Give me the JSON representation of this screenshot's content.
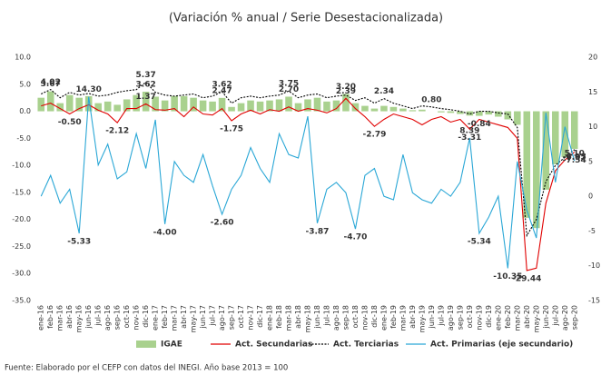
{
  "chart_data": {
    "type": "combo",
    "title": "(Variación % anual / Serie Desestacionalizada)",
    "source": "Fuente: Elaborado por el CEFP con datos del INEGI. Año base 2013 = 100",
    "categories": [
      "ene-16",
      "feb-16",
      "mar-16",
      "abr-16",
      "may-16",
      "jun-16",
      "jul-16",
      "ago-16",
      "sep-16",
      "oct-16",
      "nov-16",
      "dic-16",
      "ene-17",
      "feb-17",
      "mar-17",
      "abr-17",
      "may-17",
      "jun-17",
      "jul-17",
      "ago-17",
      "sep-17",
      "oct-17",
      "nov-17",
      "dic-17",
      "ene-18",
      "feb-18",
      "mar-18",
      "abr-18",
      "may-18",
      "jun-18",
      "jul-18",
      "ago-18",
      "sep-18",
      "oct-18",
      "nov-18",
      "dic-18",
      "ene-19",
      "feb-19",
      "mar-19",
      "abr-19",
      "may-19",
      "jun-19",
      "jul-19",
      "ago-19",
      "sep-19",
      "oct-19",
      "nov-19",
      "dic-19",
      "ene-20",
      "feb-20",
      "mar-20",
      "abr-20",
      "may-20",
      "jun-20",
      "jul-20",
      "ago-20",
      "sep-20"
    ],
    "ylim": [
      -35,
      10
    ],
    "yticks": [
      {
        "value": 10,
        "label": "10.0"
      },
      {
        "value": 5,
        "label": "5.0"
      },
      {
        "value": 0,
        "label": "0.0"
      },
      {
        "value": -5,
        "label": "-5.0"
      },
      {
        "value": -10,
        "label": "-10.0"
      },
      {
        "value": -15,
        "label": "-15.0"
      },
      {
        "value": -20,
        "label": "-20.0"
      },
      {
        "value": -25,
        "label": "-25.0"
      },
      {
        "value": -30,
        "label": "-30.0"
      },
      {
        "value": -35,
        "label": "-35.0"
      }
    ],
    "y2lim": [
      -15,
      20
    ],
    "y2ticks": [
      20,
      15,
      10,
      5,
      0,
      -5,
      -10,
      -15
    ],
    "series": [
      {
        "name": "IGAE",
        "type": "bar",
        "color": "#a9d18e",
        "label_color": "#2e9e48",
        "values": [
          2.5,
          3.67,
          1.5,
          3.0,
          2.5,
          2.8,
          1.5,
          1.8,
          1.2,
          2.2,
          3.0,
          3.62,
          2.7,
          2.0,
          2.8,
          2.8,
          2.5,
          2.0,
          1.8,
          2.47,
          0.8,
          1.5,
          2.0,
          1.8,
          2.0,
          2.2,
          2.7,
          1.5,
          2.2,
          2.5,
          1.8,
          2.0,
          3.2,
          1.5,
          1.0,
          0.5,
          1.0,
          0.8,
          0.5,
          0.2,
          0.3,
          0.0,
          -0.2,
          -0.3,
          -0.5,
          -0.8,
          -0.84,
          -0.6,
          -1.0,
          -1.5,
          -2.5,
          -19.7,
          -21.6,
          -14.5,
          -9.8,
          -8.5,
          -6.95
        ],
        "value_labels": [
          null,
          "3.67",
          null,
          null,
          null,
          null,
          null,
          null,
          null,
          null,
          null,
          "3.62",
          null,
          null,
          null,
          null,
          null,
          null,
          null,
          "2.47",
          null,
          null,
          null,
          null,
          null,
          null,
          "2.70",
          null,
          null,
          null,
          null,
          null,
          "3.20",
          null,
          null,
          null,
          null,
          null,
          null,
          null,
          null,
          null,
          null,
          null,
          null,
          null,
          "-0.84",
          null,
          null,
          null,
          null,
          null,
          null,
          null,
          null,
          null,
          "-6.95"
        ]
      },
      {
        "name": "Act. Secundarias",
        "type": "line",
        "color": "#e00000",
        "label_color": "#e00000",
        "values": [
          1.0,
          1.5,
          0.5,
          -0.5,
          0.5,
          1.2,
          0.2,
          -0.5,
          -2.12,
          0.5,
          0.5,
          1.37,
          0.3,
          0.2,
          0.5,
          -1.0,
          0.8,
          -0.5,
          -0.7,
          0.5,
          -1.75,
          -0.5,
          0.2,
          -0.5,
          0.3,
          0.0,
          0.8,
          0.0,
          0.5,
          0.2,
          -0.3,
          0.5,
          2.39,
          0.5,
          -1.0,
          -2.79,
          -1.5,
          -0.5,
          -1.0,
          -1.5,
          -2.5,
          -1.5,
          -1.0,
          -2.0,
          -1.5,
          -3.31,
          -1.5,
          -2.0,
          -2.5,
          -3.0,
          -5.0,
          -29.44,
          -29.0,
          -17.0,
          -11.0,
          -9.0,
          -7.54
        ],
        "value_labels": [
          null,
          null,
          null,
          "-0.50",
          null,
          null,
          null,
          null,
          "-2.12",
          null,
          null,
          "1.37",
          null,
          null,
          null,
          null,
          null,
          null,
          null,
          null,
          "-1.75",
          null,
          null,
          null,
          null,
          null,
          null,
          null,
          null,
          null,
          null,
          null,
          "2.39",
          null,
          null,
          "-2.79",
          null,
          null,
          null,
          null,
          null,
          null,
          null,
          null,
          null,
          "-3.31",
          null,
          null,
          null,
          null,
          null,
          "-29.44",
          null,
          null,
          null,
          null,
          "-7.54"
        ]
      },
      {
        "name": "Act. Terciarias",
        "type": "line",
        "style": "dotted",
        "color": "#000000",
        "label_color": "#000000",
        "values": [
          3.2,
          4.02,
          2.5,
          3.5,
          3.0,
          3.3,
          2.8,
          3.0,
          3.5,
          3.8,
          4.0,
          5.37,
          3.5,
          3.0,
          2.8,
          3.0,
          3.2,
          2.5,
          2.8,
          3.62,
          1.5,
          2.5,
          2.8,
          2.5,
          2.8,
          3.0,
          3.75,
          2.5,
          3.0,
          3.2,
          2.5,
          2.8,
          3.0,
          2.0,
          2.5,
          1.5,
          2.34,
          1.5,
          1.0,
          0.5,
          1.0,
          0.8,
          0.5,
          0.3,
          0.0,
          -0.5,
          0.0,
          0.0,
          -0.3,
          -0.5,
          -3.0,
          -23.0,
          -20.0,
          -13.0,
          -10.0,
          -8.5,
          -7.07
        ],
        "value_labels": [
          null,
          "4.02",
          null,
          null,
          null,
          null,
          null,
          null,
          null,
          null,
          null,
          "5.37",
          null,
          null,
          null,
          null,
          null,
          null,
          null,
          "3.62",
          null,
          null,
          null,
          null,
          null,
          null,
          "3.75",
          null,
          null,
          null,
          null,
          null,
          null,
          null,
          null,
          null,
          "2.34",
          null,
          null,
          null,
          null,
          "0.80",
          null,
          null,
          null,
          null,
          null,
          null,
          null,
          null,
          null,
          null,
          null,
          null,
          null,
          null,
          "-7.07"
        ]
      },
      {
        "name": "Act. Primarias (eje secundario)",
        "type": "line",
        "axis": "y2",
        "color": "#2aa7d6",
        "label_color": "#2aa7d6",
        "values": [
          0,
          3,
          -1,
          1,
          -5.33,
          14.3,
          4.5,
          7.5,
          2.5,
          3.5,
          9,
          4,
          11,
          -4.0,
          5,
          3,
          2,
          6,
          1.5,
          -2.6,
          1,
          3,
          7,
          4,
          2,
          9,
          6,
          5.5,
          11.5,
          -3.87,
          1,
          2,
          0.5,
          -4.7,
          3,
          4,
          0,
          -0.5,
          6,
          0.5,
          -0.5,
          -1,
          1,
          0,
          2,
          8.39,
          -5.34,
          -3,
          0,
          -10.35,
          5,
          -2,
          -6,
          12,
          2,
          10,
          5.1
        ],
        "value_labels": [
          null,
          null,
          null,
          null,
          "-5.33",
          "14.30",
          null,
          null,
          null,
          null,
          null,
          null,
          null,
          "-4.00",
          null,
          null,
          null,
          null,
          null,
          "-2.60",
          null,
          null,
          null,
          null,
          null,
          null,
          null,
          null,
          null,
          "-3.87",
          null,
          null,
          null,
          "-4.70",
          null,
          null,
          null,
          null,
          null,
          null,
          null,
          null,
          null,
          null,
          null,
          "8.39",
          "-5.34",
          null,
          null,
          "-10.35",
          null,
          null,
          null,
          null,
          null,
          null,
          "5.10"
        ]
      }
    ]
  }
}
